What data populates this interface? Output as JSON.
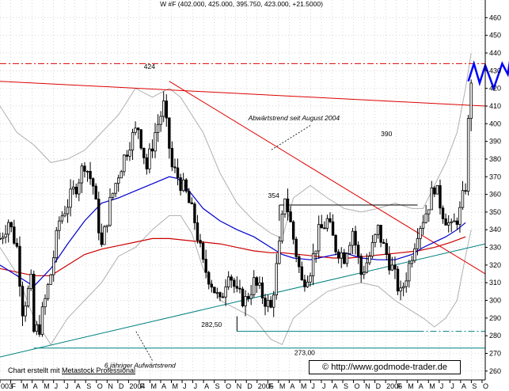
{
  "chart_data": {
    "type": "ohlc",
    "title": "W #F (402.000, 425.000, 395.750, 423.000, +21.5000)",
    "ylim": [
      255,
      470
    ],
    "y_ticks": [
      260,
      270,
      280,
      290,
      300,
      310,
      320,
      330,
      340,
      350,
      360,
      370,
      380,
      390,
      400,
      410,
      420,
      430,
      440,
      450,
      460
    ],
    "x_tick_labels": [
      "003",
      "F",
      "M",
      "A",
      "M",
      "J",
      "J",
      "A",
      "S",
      "O",
      "N",
      "D",
      "2004",
      "F",
      "M",
      "A",
      "M",
      "J",
      "J",
      "A",
      "S",
      "O",
      "N",
      "D",
      "2005",
      "F",
      "M",
      "A",
      "M",
      "J",
      "J",
      "A",
      "S",
      "O",
      "N",
      "D",
      "2006",
      "F",
      "M",
      "A",
      "M",
      "J",
      "J",
      "A",
      "S",
      "O"
    ],
    "x_range_weeks": [
      0,
      172
    ],
    "price_path": [
      [
        0,
        335
      ],
      [
        3,
        345
      ],
      [
        6,
        330
      ],
      [
        8,
        295
      ],
      [
        11,
        310
      ],
      [
        12,
        282
      ],
      [
        14,
        285
      ],
      [
        16,
        300
      ],
      [
        18,
        315
      ],
      [
        21,
        345
      ],
      [
        24,
        355
      ],
      [
        27,
        365
      ],
      [
        30,
        378
      ],
      [
        33,
        365
      ],
      [
        36,
        330
      ],
      [
        39,
        355
      ],
      [
        42,
        372
      ],
      [
        46,
        390
      ],
      [
        49,
        398
      ],
      [
        52,
        375
      ],
      [
        55,
        395
      ],
      [
        58,
        410
      ],
      [
        61,
        375
      ],
      [
        63,
        370
      ],
      [
        66,
        360
      ],
      [
        69,
        345
      ],
      [
        72,
        320
      ],
      [
        75,
        310
      ],
      [
        78,
        298
      ],
      [
        81,
        318
      ],
      [
        84,
        303
      ],
      [
        87,
        300
      ],
      [
        90,
        310
      ],
      [
        93,
        303
      ],
      [
        96,
        295
      ],
      [
        99,
        330
      ],
      [
        101,
        360
      ],
      [
        104,
        335
      ],
      [
        107,
        310
      ],
      [
        110,
        318
      ],
      [
        113,
        338
      ],
      [
        116,
        345
      ],
      [
        119,
        330
      ],
      [
        122,
        325
      ],
      [
        125,
        340
      ],
      [
        128,
        315
      ],
      [
        131,
        325
      ],
      [
        134,
        340
      ],
      [
        136,
        330
      ],
      [
        139,
        318
      ],
      [
        142,
        303
      ],
      [
        145,
        320
      ],
      [
        148,
        340
      ],
      [
        151,
        350
      ],
      [
        154,
        365
      ],
      [
        157,
        350
      ],
      [
        160,
        340
      ],
      [
        163,
        350
      ],
      [
        165,
        365
      ],
      [
        166,
        400
      ],
      [
        167,
        425
      ]
    ],
    "ma_short_path": [
      [
        0,
        320
      ],
      [
        6,
        314
      ],
      [
        12,
        308
      ],
      [
        18,
        318
      ],
      [
        24,
        332
      ],
      [
        30,
        345
      ],
      [
        36,
        355
      ],
      [
        42,
        358
      ],
      [
        48,
        362
      ],
      [
        54,
        366
      ],
      [
        60,
        370
      ],
      [
        63,
        369
      ],
      [
        66,
        364
      ],
      [
        72,
        352
      ],
      [
        78,
        345
      ],
      [
        84,
        340
      ],
      [
        90,
        336
      ],
      [
        96,
        330
      ],
      [
        100,
        326
      ],
      [
        104,
        324
      ],
      [
        110,
        323
      ],
      [
        116,
        325
      ],
      [
        122,
        327
      ],
      [
        128,
        324
      ],
      [
        134,
        323
      ],
      [
        140,
        323
      ],
      [
        146,
        326
      ],
      [
        150,
        330
      ],
      [
        154,
        333
      ],
      [
        158,
        336
      ],
      [
        162,
        340
      ],
      [
        165,
        344
      ]
    ],
    "ma_long_path": [
      [
        0,
        318
      ],
      [
        6,
        316
      ],
      [
        12,
        314
      ],
      [
        18,
        314
      ],
      [
        24,
        320
      ],
      [
        30,
        326
      ],
      [
        36,
        329
      ],
      [
        42,
        331
      ],
      [
        48,
        333
      ],
      [
        54,
        335
      ],
      [
        60,
        335
      ],
      [
        66,
        334
      ],
      [
        72,
        333
      ],
      [
        78,
        332
      ],
      [
        84,
        330
      ],
      [
        90,
        328
      ],
      [
        96,
        327
      ],
      [
        100,
        327
      ],
      [
        106,
        326
      ],
      [
        112,
        325
      ],
      [
        118,
        324
      ],
      [
        124,
        324
      ],
      [
        130,
        325
      ],
      [
        136,
        326
      ],
      [
        142,
        327
      ],
      [
        148,
        328
      ],
      [
        154,
        330
      ],
      [
        160,
        333
      ],
      [
        165,
        336
      ]
    ],
    "bollinger_upper": [
      [
        0,
        410
      ],
      [
        6,
        395
      ],
      [
        12,
        388
      ],
      [
        18,
        378
      ],
      [
        24,
        380
      ],
      [
        30,
        385
      ],
      [
        36,
        395
      ],
      [
        42,
        405
      ],
      [
        48,
        420
      ],
      [
        54,
        415
      ],
      [
        60,
        420
      ],
      [
        64,
        415
      ],
      [
        68,
        405
      ],
      [
        72,
        395
      ],
      [
        78,
        372
      ],
      [
        84,
        355
      ],
      [
        90,
        345
      ],
      [
        96,
        338
      ],
      [
        100,
        335
      ],
      [
        104,
        358
      ],
      [
        110,
        365
      ],
      [
        116,
        358
      ],
      [
        122,
        352
      ],
      [
        128,
        350
      ],
      [
        134,
        352
      ],
      [
        140,
        355
      ],
      [
        146,
        352
      ],
      [
        150,
        352
      ],
      [
        154,
        365
      ],
      [
        158,
        378
      ],
      [
        162,
        395
      ],
      [
        165,
        420
      ],
      [
        167,
        440
      ]
    ],
    "bollinger_lower": [
      [
        0,
        330
      ],
      [
        6,
        315
      ],
      [
        12,
        290
      ],
      [
        18,
        275
      ],
      [
        24,
        290
      ],
      [
        30,
        300
      ],
      [
        36,
        310
      ],
      [
        42,
        325
      ],
      [
        48,
        330
      ],
      [
        54,
        340
      ],
      [
        60,
        348
      ],
      [
        64,
        348
      ],
      [
        68,
        338
      ],
      [
        72,
        318
      ],
      [
        78,
        300
      ],
      [
        84,
        295
      ],
      [
        90,
        290
      ],
      [
        96,
        278
      ],
      [
        100,
        275
      ],
      [
        104,
        290
      ],
      [
        110,
        298
      ],
      [
        116,
        305
      ],
      [
        122,
        308
      ],
      [
        128,
        310
      ],
      [
        134,
        308
      ],
      [
        140,
        300
      ],
      [
        146,
        294
      ],
      [
        150,
        290
      ],
      [
        154,
        285
      ],
      [
        158,
        290
      ],
      [
        162,
        300
      ],
      [
        165,
        325
      ],
      [
        167,
        340
      ]
    ],
    "trendlines": [
      {
        "name": "Abwärtstrend seit August 2004",
        "points": [
          [
            0,
            424
          ],
          [
            172,
            410
          ]
        ],
        "color": "#dd0000",
        "style": "solid"
      },
      {
        "name": "abwaertstrend-steep",
        "points": [
          [
            60,
            424
          ],
          [
            172,
            315
          ]
        ],
        "color": "#dd0000",
        "style": "solid"
      },
      {
        "name": "6 jähriger Aufwärtstrend",
        "points": [
          [
            0,
            268
          ],
          [
            172,
            332
          ]
        ],
        "color": "#008080",
        "style": "solid"
      },
      {
        "name": "level-434-dashdot",
        "points": [
          [
            0,
            434
          ],
          [
            172,
            434
          ]
        ],
        "color": "#dd0000",
        "style": "dashdot"
      },
      {
        "name": "support-273",
        "points": [
          [
            12,
            273
          ],
          [
            172,
            273
          ]
        ],
        "color": "#008080",
        "style": "solid"
      },
      {
        "name": "support-282",
        "points": [
          [
            84,
            282.5
          ],
          [
            148,
            282.5
          ]
        ],
        "color": "#008080",
        "style": "solid"
      },
      {
        "name": "support-282-dashdot",
        "points": [
          [
            148,
            282.5
          ],
          [
            172,
            282.5
          ]
        ],
        "color": "#008080",
        "style": "dashdot"
      },
      {
        "name": "resistance-354",
        "points": [
          [
            99,
            354
          ],
          [
            148,
            354
          ]
        ],
        "color": "#000000",
        "style": "solid"
      },
      {
        "name": "bracket-354",
        "points": [
          [
            99,
            354
          ],
          [
            99,
            345
          ]
        ],
        "color": "#000000",
        "style": "solid"
      },
      {
        "name": "bracket-282",
        "points": [
          [
            84,
            282.5
          ],
          [
            84,
            291
          ]
        ],
        "color": "#000000",
        "style": "solid"
      }
    ],
    "forecast_zigzag": [
      [
        166,
        424
      ],
      [
        168,
        434
      ],
      [
        170,
        423
      ],
      [
        172,
        433
      ],
      [
        175,
        420
      ],
      [
        178,
        434
      ],
      [
        180,
        428
      ],
      [
        183,
        458
      ]
    ],
    "price_labels": [
      {
        "text": "424",
        "x": 53,
        "y": 431
      },
      {
        "text": "354",
        "x": 97,
        "y": 358
      },
      {
        "text": "390",
        "x": 137,
        "y": 393
      },
      {
        "text": "282,50",
        "x": 75,
        "y": 285
      },
      {
        "text": "273,00",
        "x": 108,
        "y": 269
      }
    ],
    "annotations": {
      "downtrend": "Abwärtstrend seit August 2004",
      "uptrend": "6 jähriger Aufwärtstrend"
    },
    "colors": {
      "price": "#000000",
      "ma_short": "#0000cc",
      "ma_long": "#cc0000",
      "bollinger": "#b0b0b0",
      "forecast": "#0000ff"
    }
  },
  "credit": {
    "prefix": "Chart erstellt mit ",
    "product": "Metastock Professional"
  },
  "url_box": {
    "symbol": "©",
    "url": "http://www.godmode-trader.de"
  }
}
